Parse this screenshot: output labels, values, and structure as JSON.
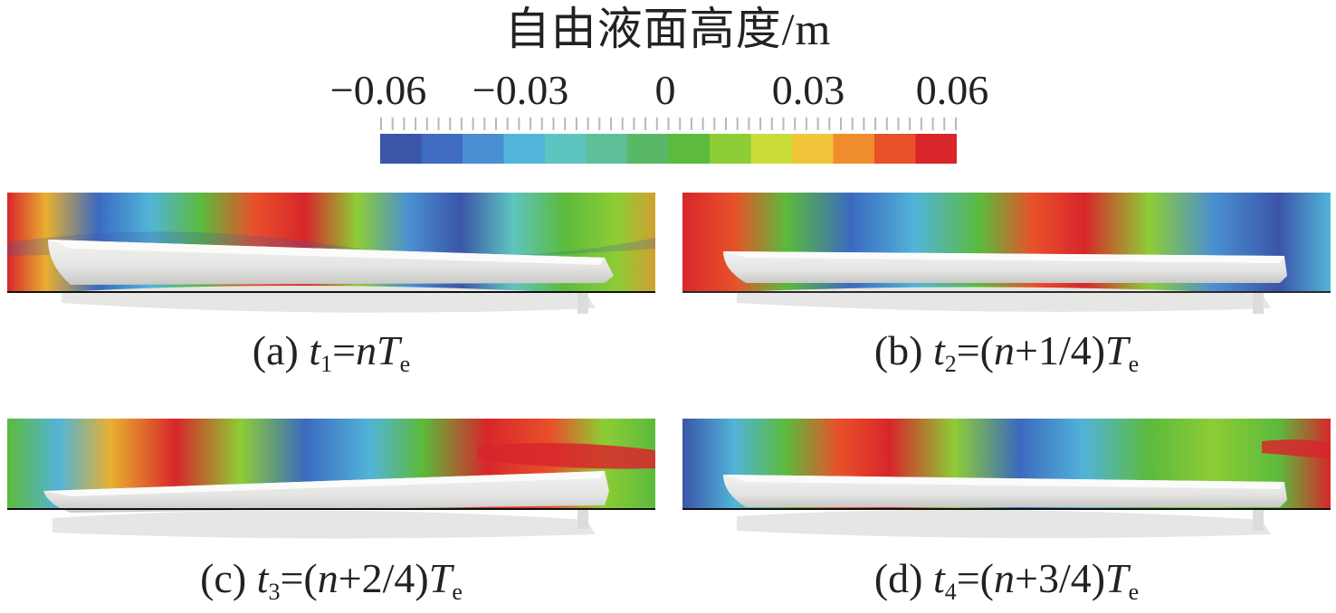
{
  "legend": {
    "title": "自由液面高度/m",
    "ticks": [
      "−0.06",
      "−0.03",
      "0",
      "0.03",
      "0.06"
    ],
    "colors": [
      "#3b55a8",
      "#3f6cc0",
      "#4a8fd2",
      "#52b4d8",
      "#5ec4c0",
      "#5ebf98",
      "#59b865",
      "#5cba3c",
      "#8dcd35",
      "#c9dc38",
      "#f0c53a",
      "#ef8d2c",
      "#e8512a",
      "#d8262b"
    ]
  },
  "panels": [
    {
      "id": "a",
      "label": "(a) ",
      "var": "t",
      "sub": "1",
      "expr_pre": "=",
      "expr_n": "n",
      "expr_mid": "",
      "expr_T": "T",
      "expr_Tsub": "e"
    },
    {
      "id": "b",
      "label": "(b) ",
      "var": "t",
      "sub": "2",
      "expr_pre": "=(",
      "expr_n": "n",
      "expr_mid": "+1/4)",
      "expr_T": "T",
      "expr_Tsub": "e"
    },
    {
      "id": "c",
      "label": "(c) ",
      "var": "t",
      "sub": "3",
      "expr_pre": "=(",
      "expr_n": "n",
      "expr_mid": "+2/4)",
      "expr_T": "T",
      "expr_Tsub": "e"
    },
    {
      "id": "d",
      "label": "(d) ",
      "var": "t",
      "sub": "4",
      "expr_pre": "=(",
      "expr_n": "n",
      "expr_mid": "+3/4)",
      "expr_T": "T",
      "expr_Tsub": "e"
    }
  ]
}
